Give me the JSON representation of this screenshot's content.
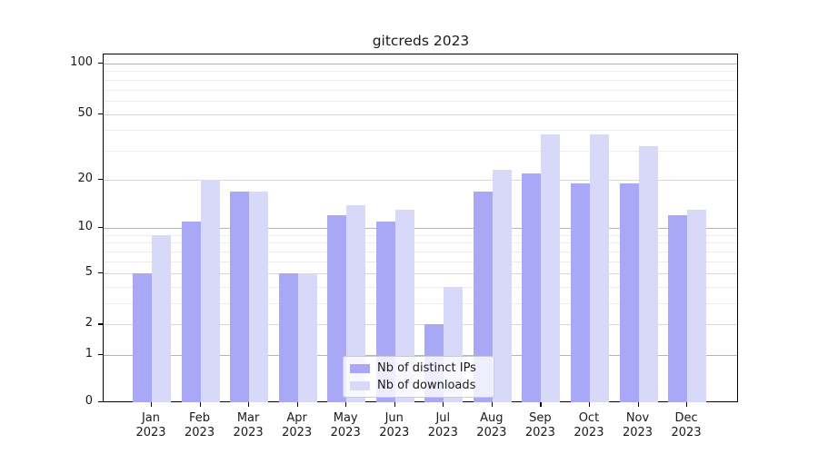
{
  "chart_data": {
    "type": "bar",
    "title": "gitcreds 2023",
    "categories": [
      "Jan",
      "Feb",
      "Mar",
      "Apr",
      "May",
      "Jun",
      "Jul",
      "Aug",
      "Sep",
      "Oct",
      "Nov",
      "Dec"
    ],
    "category_year": "2023",
    "series": [
      {
        "name": "Nb of distinct IPs",
        "color": "#a8a8f7",
        "values": [
          5,
          11,
          17,
          5,
          12,
          11,
          2,
          17,
          22,
          19,
          19,
          12
        ]
      },
      {
        "name": "Nb of downloads",
        "color": "#d8d8f9",
        "values": [
          9,
          20,
          17,
          5,
          14,
          13,
          4,
          23,
          38,
          38,
          32,
          13
        ]
      }
    ],
    "xlabel": "",
    "ylabel": "",
    "y_axis": {
      "scale": "log1p",
      "tick_labels": [
        0,
        1,
        2,
        5,
        10,
        20,
        50,
        100
      ],
      "decade_gridlines": [
        1,
        10,
        100
      ],
      "mid_gridlines": [
        2,
        5,
        20,
        50
      ],
      "minor_gridlines": [
        3,
        4,
        6,
        7,
        8,
        9,
        30,
        40,
        60,
        70,
        80,
        90
      ],
      "range": [
        0,
        100
      ]
    },
    "legend": {
      "position": "bottom-center",
      "entries": [
        "Nb of distinct IPs",
        "Nb of downloads"
      ]
    },
    "grid": true
  },
  "colors": {
    "ips_bar": "#a8a8f7",
    "downloads_bar": "#d8d8f9",
    "frame": "#000000",
    "grid_major": "#b5b5b5",
    "grid_mid": "#d8d8d8",
    "grid_minor": "#ececec"
  }
}
